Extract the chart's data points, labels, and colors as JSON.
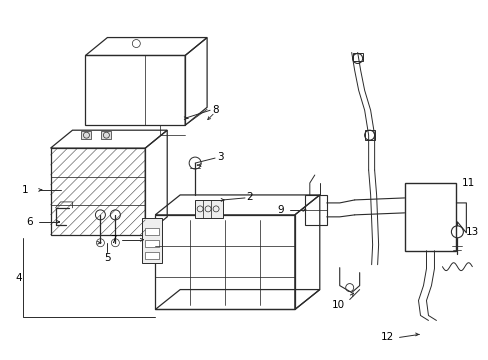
{
  "background_color": "#ffffff",
  "line_color": "#2a2a2a",
  "label_color": "#000000",
  "figsize": [
    4.89,
    3.6
  ],
  "dpi": 100,
  "font_size": 7.5,
  "lw_main": 0.9,
  "lw_thin": 0.55,
  "lw_thick": 1.3
}
